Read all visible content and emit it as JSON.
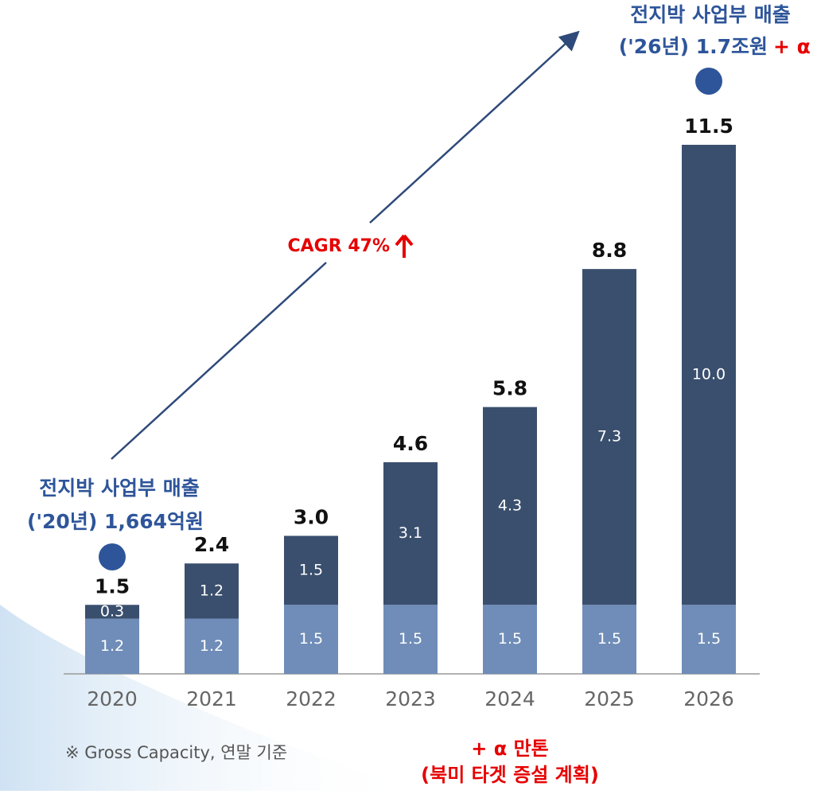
{
  "chart_data": {
    "type": "stacked_bar",
    "categories": [
      "2020",
      "2021",
      "2022",
      "2023",
      "2024",
      "2025",
      "2026"
    ],
    "series": [
      {
        "color": "#6f8db8",
        "values": [
          1.2,
          1.2,
          1.5,
          1.5,
          1.5,
          1.5,
          1.5
        ],
        "value_labels": [
          "1.2",
          "1.2",
          "1.5",
          "1.5",
          "1.5",
          "1.5",
          "1.5"
        ]
      },
      {
        "color": "#3a4f6e",
        "values": [
          0.3,
          1.2,
          1.5,
          3.1,
          4.3,
          7.3,
          10.0
        ],
        "value_labels": [
          "0.3",
          "1.2",
          "1.5",
          "3.1",
          "4.3",
          "7.3",
          "10.0"
        ]
      }
    ],
    "totals": [
      1.5,
      2.4,
      3.0,
      4.6,
      5.8,
      8.8,
      11.5
    ],
    "total_labels": [
      "1.5",
      "2.4",
      "3.0",
      "4.6",
      "5.8",
      "8.8",
      "11.5"
    ],
    "annotations": {
      "start_title": "전지박 사업부 매출",
      "start_value": "('20년) 1,664억원",
      "end_title": "전지박 사업부 매출",
      "end_value": "('26년) 1.7조원",
      "end_plus": "+ α",
      "cagr": "CAGR 47%",
      "note": "※ Gross Capacity, 연말 기준",
      "plan_1": "+ α 만톤",
      "plan_2": "(북미 타겟 증설 계획)"
    }
  }
}
